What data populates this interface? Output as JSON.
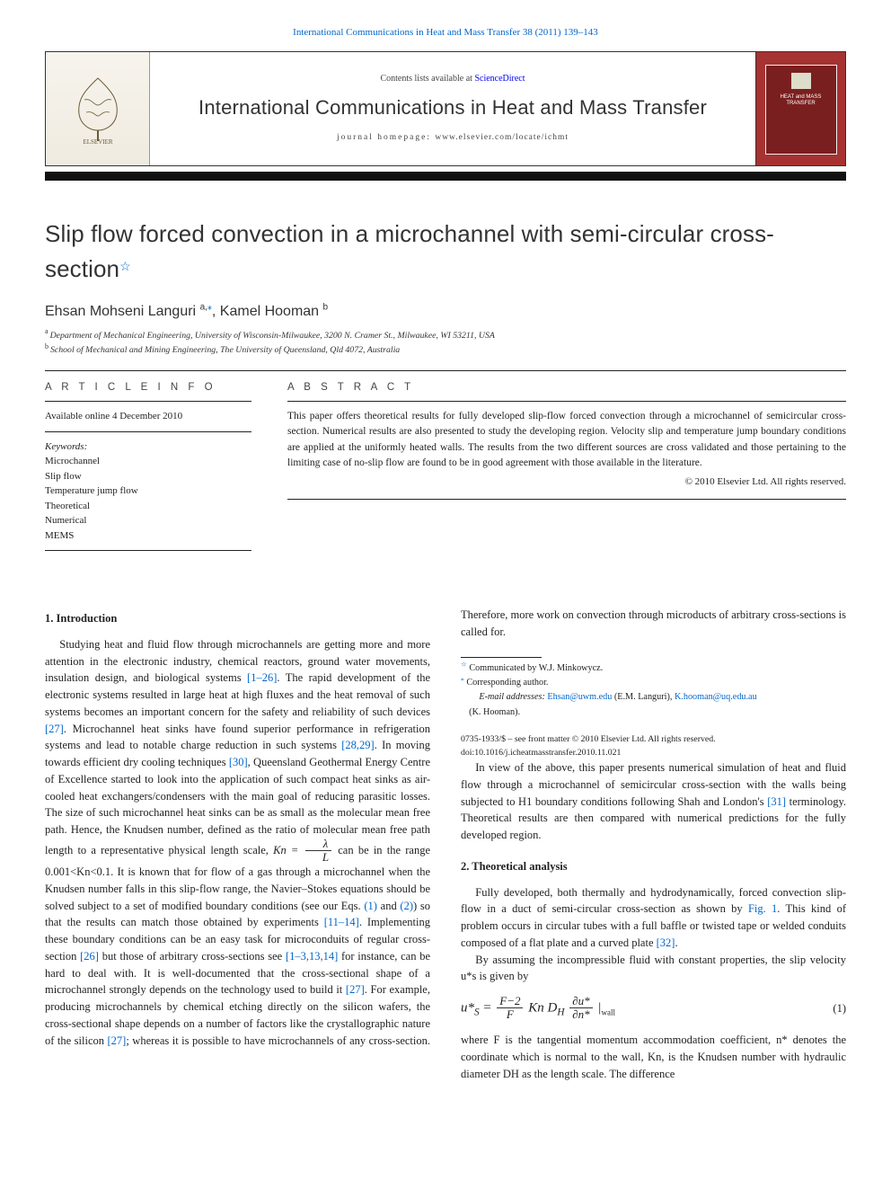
{
  "top_citation": {
    "journal_link": "International Communications in Heat and Mass Transfer",
    "vol_pages": " 38 (2011) 139–143"
  },
  "banner": {
    "contents_prefix": "Contents lists available at ",
    "sciencedirect": "ScienceDirect",
    "journal_name": "International Communications in Heat and Mass Transfer",
    "homepage_label": "journal homepage: ",
    "homepage_url": "www.elsevier.com/locate/ichmt",
    "publisher": "ELSEVIER",
    "cover_line1": "HEAT and MASS",
    "cover_line2": "TRANSFER"
  },
  "article": {
    "title": "Slip flow forced convection in a microchannel with semi-circular cross-section",
    "star_note_marker": "☆",
    "authors_html": "Ehsan Mohseni Languri",
    "author1_sup": "a,",
    "author1_star": "⁎",
    "author_sep": ", ",
    "author2": "Kamel Hooman ",
    "author2_sup": "b",
    "aff_a_sup": "a",
    "aff_a": "Department of Mechanical Engineering, University of Wisconsin-Milwaukee, 3200 N. Cramer St., Milwaukee, WI 53211, USA",
    "aff_b_sup": "b",
    "aff_b": "School of Mechanical and Mining Engineering, The University of Queensland, Qld 4072, Australia"
  },
  "info": {
    "label": "A R T I C L E   I N F O",
    "history": "Available online 4 December 2010",
    "kw_head": "Keywords:",
    "keywords": [
      "Microchannel",
      "Slip flow",
      "Temperature jump flow",
      "Theoretical",
      "Numerical",
      "MEMS"
    ]
  },
  "abstract": {
    "label": "A B S T R A C T",
    "text": "This paper offers theoretical results for fully developed slip-flow forced convection through a microchannel of semicircular cross-section. Numerical results are also presented to study the developing region. Velocity slip and temperature jump boundary conditions are applied at the uniformly heated walls. The results from the two different sources are cross validated and those pertaining to the limiting case of no-slip flow are found to be in good agreement with those available in the literature.",
    "copyright": "© 2010 Elsevier Ltd. All rights reserved."
  },
  "sections": {
    "intro_head": "1. Introduction",
    "intro_p1a": "Studying heat and fluid flow through microchannels are getting more and more attention in the electronic industry, chemical reactors, ground water movements, insulation design, and biological systems ",
    "cite1": "[1–26]",
    "intro_p1b": ". The rapid development of the electronic systems resulted in large heat at high fluxes and the heat removal of such systems becomes an important concern for the safety and reliability of such devices ",
    "cite2": "[27]",
    "intro_p1c": ". Microchannel heat sinks have found superior performance in refrigeration systems and lead to notable charge reduction in such systems ",
    "cite3": "[28,29]",
    "intro_p1d": ". In moving towards efficient dry cooling techniques ",
    "cite4": "[30]",
    "intro_p1e": ", Queensland Geothermal Energy Centre of Excellence started to look into the application of such compact heat sinks as air-cooled heat exchangers/condensers with the main goal of reducing parasitic losses. The size of such microchannel heat sinks can be as small as the molecular mean free path. Hence, the Knudsen number, defined as the ratio of molecular mean free path length to a representative physical length scale, ",
    "kn_def_pre": "Kn = ",
    "kn_num": "λ",
    "kn_den": "L",
    "intro_p1f": " can be in the range 0.001<Kn<0.1. It is known that for flow of a gas through a microchannel when the Knudsen number falls in this slip-flow range, the Navier–Stokes equations should be solved subject to a set of modified boundary conditions (see our Eqs. ",
    "eqref1": "(1)",
    "and": " and ",
    "eqref2": "(2)",
    "intro_p1g": ") so that the results can match those obtained by experiments ",
    "cite5": "[11–14]",
    "intro_p1h": ". Implementing these boundary conditions can be an easy task for microconduits of regular cross-section ",
    "cite6": "[26]",
    "intro_p1i": " but those of arbitrary cross-sections see ",
    "cite7": "[1–3,13,14]",
    "intro_p1j": " for instance, can be hard to deal with. It is well-documented that the cross-sectional shape of a microchannel strongly depends on the technology used to build it ",
    "cite8": "[27]",
    "intro_p1k": ". For example, producing microchannels by chemical etching directly on the silicon wafers, the cross-sectional shape depends on a number of factors like the crystallographic nature of the silicon ",
    "cite9": "[27]",
    "intro_p1l": "; whereas it is possible to have microchannels of any cross-section. Therefore, more work on convection through microducts of arbitrary cross-sections is called for.",
    "intro_p2a": "In view of the above, this paper presents numerical simulation of heat and fluid flow through a microchannel of semicircular cross-section with the walls being subjected to H1 boundary conditions following Shah and London's ",
    "cite10": "[31]",
    "intro_p2b": " terminology. Theoretical results are then compared with numerical predictions for the fully developed region.",
    "theory_head": "2. Theoretical analysis",
    "theory_p1a": "Fully developed, both thermally and hydrodynamically, forced convection slip-flow in a duct of semi-circular cross-section as shown by ",
    "figref1": "Fig. 1",
    "theory_p1b": ". This kind of problem occurs in circular tubes with a full baffle or twisted tape or welded conduits composed of a flat plate and a curved plate ",
    "cite11": "[32]",
    "theory_p1c": ".",
    "theory_p2": "By assuming the incompressible fluid with constant properties, the slip velocity u*s is given by",
    "eq1_num": "(1)",
    "theory_p3": "where F is the tangential momentum accommodation coefficient, n* denotes the coordinate which is normal to the wall, Kn, is the Knudsen number with hydraulic diameter DH as the length scale. The difference"
  },
  "eq1": {
    "lhs": "u*",
    "lhs_sub": "S",
    "eq": " = ",
    "f_num": "F−2",
    "f_den": "F",
    "mid": " Kn D",
    "dh_sub": "H",
    "du_num": "∂u*",
    "du_den": "∂n*",
    "bar": " |",
    "wall": "wall"
  },
  "footnotes": {
    "star": "☆",
    "comm": " Communicated by W.J. Minkowycz.",
    "corrstar": "⁎",
    "corr": " Corresponding author.",
    "em_label": "E-mail addresses: ",
    "em1": "Ehsan@uwm.edu",
    "em1_who": " (E.M. Languri), ",
    "em2": "K.hooman@uq.edu.au",
    "em2_who": "(K. Hooman)."
  },
  "foot": {
    "line1": "0735-1933/$ – see front matter © 2010 Elsevier Ltd. All rights reserved.",
    "line2": "doi:10.1016/j.icheatmasstransfer.2010.11.021"
  },
  "colors": {
    "link": "#0066cc",
    "text": "#222222",
    "banner_cover_bg": "#a63232",
    "banner_cover_inner": "#7a1f1f",
    "rule": "#222222"
  }
}
